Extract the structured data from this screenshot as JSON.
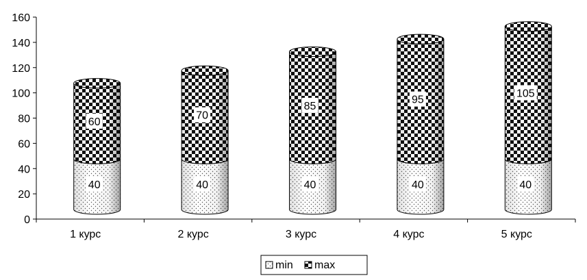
{
  "chart_data": {
    "type": "bar",
    "stacked": true,
    "style": "3d-cylinder",
    "categories": [
      "1 курс",
      "2 курс",
      "3 курс",
      "4 курс",
      "5 курс"
    ],
    "series": [
      {
        "name": "min",
        "values": [
          40,
          40,
          40,
          40,
          40
        ],
        "data_labels": [
          "40",
          "40",
          "40",
          "40",
          "40"
        ],
        "pattern": "dotted"
      },
      {
        "name": "max",
        "values": [
          60,
          70,
          85,
          95,
          105
        ],
        "data_labels": [
          "60",
          "70",
          "85",
          "95",
          "105"
        ],
        "pattern": "checkerboard"
      }
    ],
    "ylim": [
      0,
      160
    ],
    "yticks": [
      "0",
      "20",
      "40",
      "60",
      "80",
      "100",
      "120",
      "140",
      "160"
    ],
    "grid": false,
    "legend_position": "bottom",
    "title": "",
    "xlabel": "",
    "ylabel": ""
  }
}
